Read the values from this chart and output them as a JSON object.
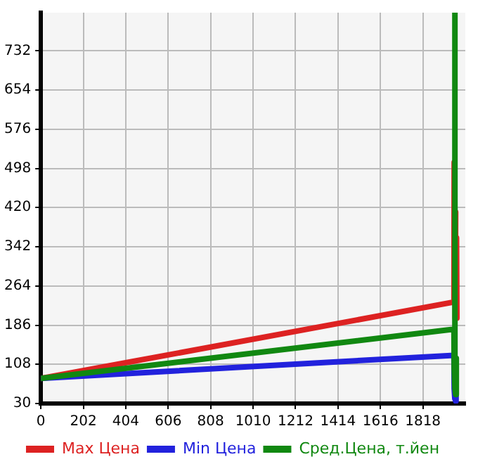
{
  "chart_data": {
    "type": "line",
    "xlim": [
      0,
      2020
    ],
    "xticks": [
      0,
      202,
      404,
      606,
      808,
      1010,
      1212,
      1414,
      1616,
      1818
    ],
    "ylim": [
      30,
      808
    ],
    "yticks": [
      30,
      108,
      186,
      264,
      342,
      420,
      498,
      576,
      654,
      732
    ],
    "grid": true,
    "legend": "bottom",
    "marker": "none",
    "line_style": "solid",
    "series": [
      {
        "name": "Max Цена",
        "color": "#dd2222",
        "x": [
          0,
          1966,
          1967,
          1968,
          1970,
          1972,
          1974,
          1976,
          1978,
          1980
        ],
        "values": [
          80,
          232,
          510,
          null,
          null,
          200,
          411,
          null,
          360,
          200
        ]
      },
      {
        "name": "Min Цена",
        "color": "#2222dd",
        "x": [
          0,
          1966,
          1967,
          1970,
          1974,
          1976
        ],
        "values": [
          80,
          126,
          60,
          40,
          35,
          60
        ]
      },
      {
        "name": "Сред.Цена, т.йен",
        "color": "#118811",
        "x": [
          0,
          1966,
          1967,
          1969,
          1972,
          1974,
          1976,
          1978
        ],
        "values": [
          80,
          178,
          100,
          808,
          60,
          48,
          120,
          60
        ]
      }
    ]
  }
}
